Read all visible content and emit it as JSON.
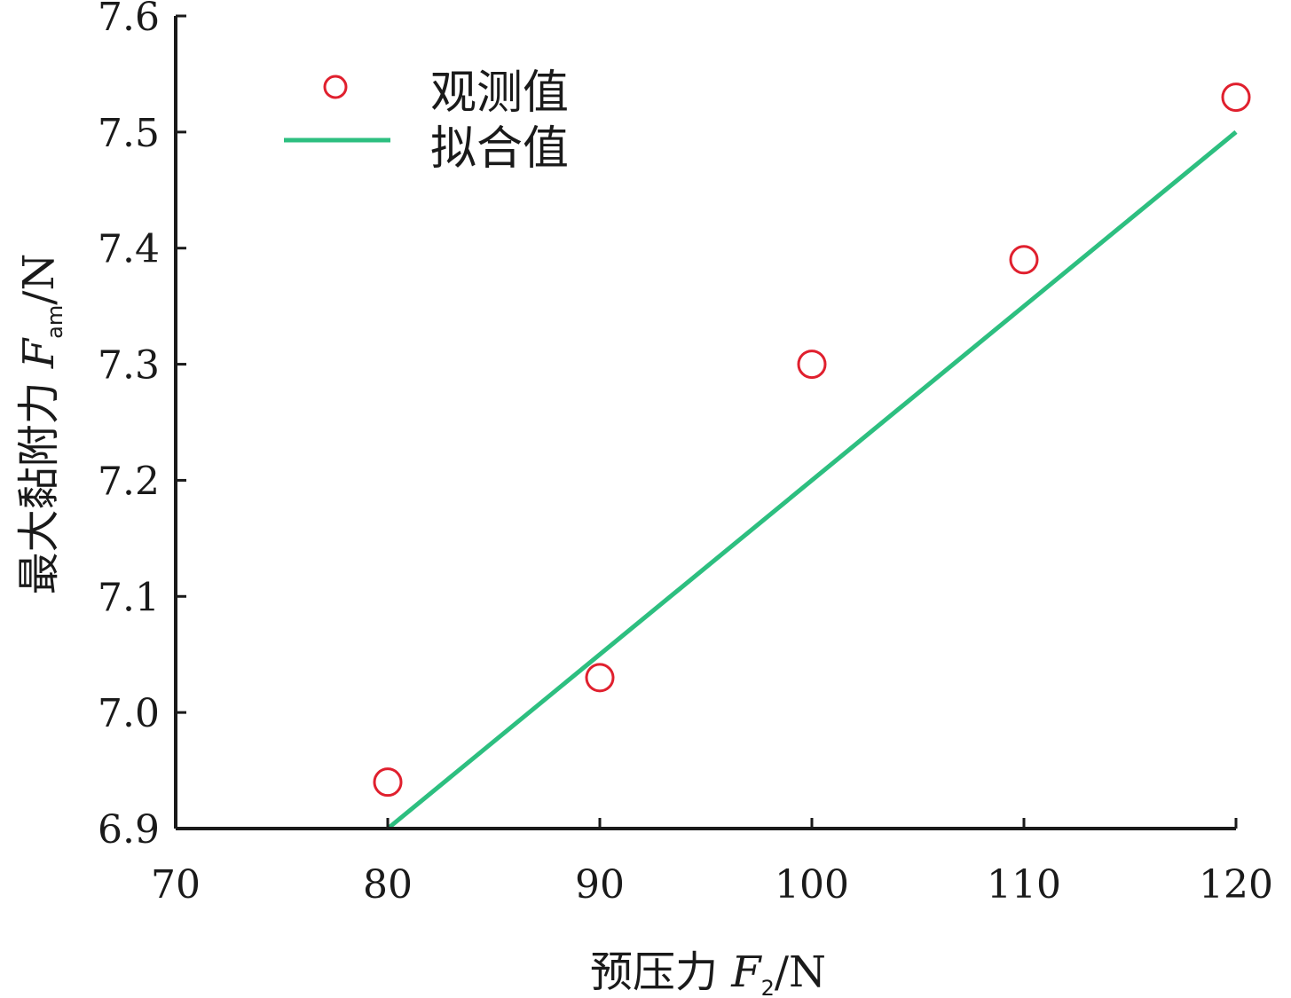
{
  "chart_data": {
    "type": "scatter",
    "xlim": [
      70,
      120
    ],
    "ylim": [
      6.9,
      7.6
    ],
    "xticks": [
      70,
      80,
      90,
      100,
      110,
      120
    ],
    "yticks": [
      6.9,
      7.0,
      7.1,
      7.2,
      7.3,
      7.4,
      7.5,
      7.6
    ],
    "xtick_labels": [
      "70",
      "80",
      "90",
      "100",
      "110",
      "120"
    ],
    "ytick_labels": [
      "6.9",
      "7.0",
      "7.1",
      "7.2",
      "7.3",
      "7.4",
      "7.5",
      "7.6"
    ],
    "xlabel": {
      "prefix": "预压力 ",
      "var": "F",
      "sub": "2",
      "unit": "/N"
    },
    "ylabel": {
      "prefix": "最大黏附力 ",
      "var": "F",
      "sub": "am",
      "unit": "/N"
    },
    "legend_position": "top-left",
    "grid": false,
    "series": [
      {
        "name": "观测值",
        "kind": "scatter",
        "color": "#e0202e",
        "x": [
          80,
          90,
          100,
          110,
          120
        ],
        "y": [
          6.94,
          7.03,
          7.3,
          7.39,
          7.53
        ]
      },
      {
        "name": "拟合值",
        "kind": "line",
        "color": "#2dbf80",
        "x": [
          80,
          120
        ],
        "y": [
          6.9,
          7.5
        ]
      }
    ]
  }
}
